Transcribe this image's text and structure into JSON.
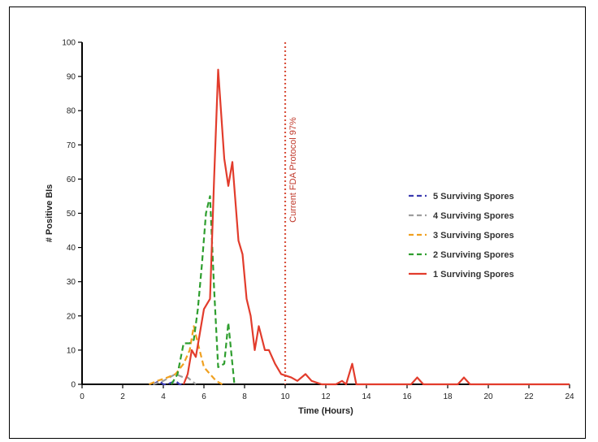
{
  "chart_data": {
    "type": "line",
    "title": "",
    "xlabel": "Time (Hours)",
    "ylabel": "# Positive BIs",
    "xlim": [
      0,
      24
    ],
    "ylim": [
      0,
      100
    ],
    "x_ticks": [
      0,
      2,
      4,
      6,
      8,
      10,
      12,
      14,
      16,
      18,
      20,
      22,
      24
    ],
    "y_ticks": [
      0,
      10,
      20,
      30,
      40,
      50,
      60,
      70,
      80,
      90,
      100
    ],
    "grid": false,
    "legend_position": "right",
    "reference_line": {
      "x": 10,
      "label": "Current FDA Protocol 97%",
      "color": "#d9533f"
    },
    "series": [
      {
        "name": "5 Surviving Spores",
        "color": "#3b3bb0",
        "dash": "dashed",
        "points": [
          [
            3.5,
            0
          ],
          [
            3.8,
            1
          ],
          [
            4.0,
            0
          ],
          [
            4.2,
            0
          ],
          [
            4.6,
            1
          ],
          [
            4.8,
            0
          ],
          [
            5.0,
            0
          ]
        ]
      },
      {
        "name": "4 Surviving Spores",
        "color": "#9e9e9e",
        "dash": "dashed",
        "points": [
          [
            3.5,
            0
          ],
          [
            4.0,
            1
          ],
          [
            4.3,
            2
          ],
          [
            4.6,
            3
          ],
          [
            5.0,
            2
          ],
          [
            5.2,
            2
          ],
          [
            5.4,
            1
          ],
          [
            5.6,
            0
          ]
        ]
      },
      {
        "name": "3 Surviving Spores",
        "color": "#f0a020",
        "dash": "dashed",
        "points": [
          [
            3.3,
            0
          ],
          [
            3.7,
            1
          ],
          [
            4.2,
            2
          ],
          [
            4.6,
            3
          ],
          [
            5.0,
            6
          ],
          [
            5.3,
            10
          ],
          [
            5.5,
            17
          ],
          [
            5.7,
            12
          ],
          [
            6.0,
            5
          ],
          [
            6.3,
            3
          ],
          [
            6.6,
            1
          ],
          [
            6.9,
            0
          ]
        ]
      },
      {
        "name": "2 Surviving Spores",
        "color": "#2e9e2e",
        "dash": "dashed",
        "points": [
          [
            4.4,
            0
          ],
          [
            4.7,
            3
          ],
          [
            5.0,
            12
          ],
          [
            5.3,
            12
          ],
          [
            5.5,
            13
          ],
          [
            5.7,
            22
          ],
          [
            5.9,
            35
          ],
          [
            6.1,
            50
          ],
          [
            6.3,
            55
          ],
          [
            6.5,
            28
          ],
          [
            6.7,
            5
          ],
          [
            7.0,
            6
          ],
          [
            7.2,
            18
          ],
          [
            7.5,
            0
          ]
        ]
      },
      {
        "name": "1 Surviving Spores",
        "color": "#e23c2c",
        "dash": "solid",
        "points": [
          [
            5.0,
            0
          ],
          [
            5.2,
            3
          ],
          [
            5.4,
            10
          ],
          [
            5.6,
            8
          ],
          [
            5.8,
            15
          ],
          [
            6.0,
            22
          ],
          [
            6.3,
            25
          ],
          [
            6.5,
            60
          ],
          [
            6.7,
            92
          ],
          [
            7.0,
            66
          ],
          [
            7.2,
            58
          ],
          [
            7.4,
            65
          ],
          [
            7.7,
            42
          ],
          [
            7.9,
            38
          ],
          [
            8.1,
            25
          ],
          [
            8.3,
            20
          ],
          [
            8.5,
            10
          ],
          [
            8.7,
            17
          ],
          [
            9.0,
            10
          ],
          [
            9.2,
            10
          ],
          [
            9.5,
            6
          ],
          [
            9.8,
            3
          ],
          [
            10.3,
            2
          ],
          [
            10.6,
            1
          ],
          [
            11.0,
            3
          ],
          [
            11.3,
            1
          ],
          [
            11.8,
            0
          ],
          [
            12.5,
            0
          ],
          [
            12.8,
            1
          ],
          [
            13.0,
            0
          ],
          [
            13.3,
            6
          ],
          [
            13.5,
            0
          ],
          [
            16.2,
            0
          ],
          [
            16.5,
            2
          ],
          [
            16.8,
            0
          ],
          [
            18.5,
            0
          ],
          [
            18.8,
            2
          ],
          [
            19.1,
            0
          ],
          [
            24,
            0
          ]
        ]
      }
    ]
  }
}
